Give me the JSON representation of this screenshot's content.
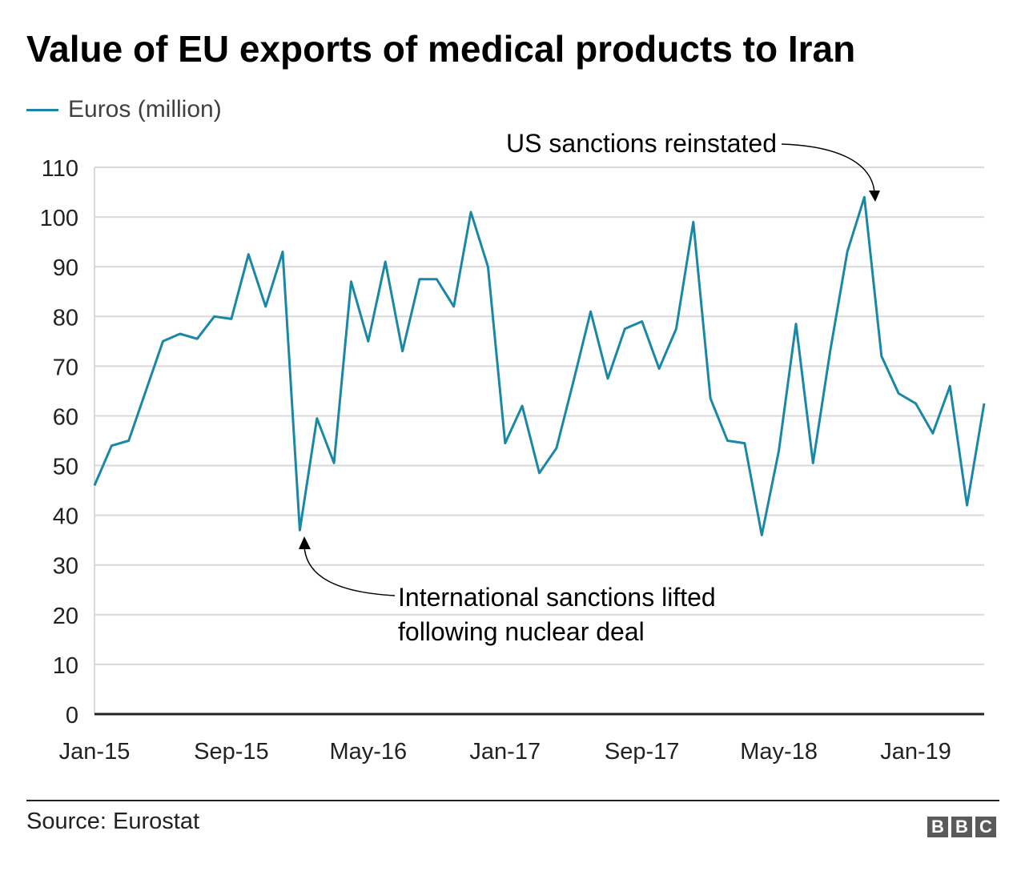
{
  "colors": {
    "line": "#1a87a6",
    "grid": "#d9d9d9",
    "axis": "#222222",
    "annotation": "#000000"
  },
  "logo": [
    "B",
    "B",
    "C"
  ],
  "source": "Source: Eurostat",
  "chart_data": {
    "type": "line",
    "title": "Value of EU exports of medical products to Iran",
    "xlabel": "",
    "ylabel": "",
    "ylim": [
      0,
      110
    ],
    "yticks": [
      0,
      10,
      20,
      30,
      40,
      50,
      60,
      70,
      80,
      90,
      100,
      110
    ],
    "xtick_labels": [
      "Jan-15",
      "Sep-15",
      "May-16",
      "Jan-17",
      "Sep-17",
      "May-18",
      "Jan-19"
    ],
    "grid": true,
    "legend_placement": "top-left",
    "x": [
      "Jan-15",
      "Feb-15",
      "Mar-15",
      "Apr-15",
      "May-15",
      "Jun-15",
      "Jul-15",
      "Aug-15",
      "Sep-15",
      "Oct-15",
      "Nov-15",
      "Dec-15",
      "Jan-16",
      "Feb-16",
      "Mar-16",
      "Apr-16",
      "May-16",
      "Jun-16",
      "Jul-16",
      "Aug-16",
      "Sep-16",
      "Oct-16",
      "Nov-16",
      "Dec-16",
      "Jan-17",
      "Feb-17",
      "Mar-17",
      "Apr-17",
      "May-17",
      "Jun-17",
      "Jul-17",
      "Aug-17",
      "Sep-17",
      "Oct-17",
      "Nov-17",
      "Dec-17",
      "Jan-18",
      "Feb-18",
      "Mar-18",
      "Apr-18",
      "May-18",
      "Jun-18",
      "Jul-18",
      "Aug-18",
      "Sep-18",
      "Oct-18",
      "Nov-18",
      "Dec-18",
      "Jan-19",
      "Feb-19",
      "Mar-19",
      "Apr-19",
      "May-19"
    ],
    "series": [
      {
        "name": "Euros (million)",
        "values": [
          46,
          54,
          55,
          65,
          75,
          76.5,
          75.5,
          80,
          79.5,
          92.5,
          82,
          93,
          37,
          59.5,
          50.5,
          87,
          75,
          91,
          73,
          87.5,
          87.5,
          82,
          101,
          90,
          54.5,
          62,
          48.5,
          53.5,
          67,
          81,
          67.5,
          77.5,
          79,
          69.5,
          77.5,
          99,
          63.5,
          55,
          54.5,
          36,
          53,
          78.5,
          50.5,
          73,
          93,
          104,
          72,
          64.5,
          62.5,
          56.5,
          66,
          42,
          62.5
        ]
      }
    ],
    "annotations": [
      {
        "text": "US sanctions reinstated",
        "x": "Oct-18"
      },
      {
        "text": [
          "International sanctions lifted",
          "following nuclear deal"
        ],
        "x": "Jan-16"
      }
    ]
  }
}
